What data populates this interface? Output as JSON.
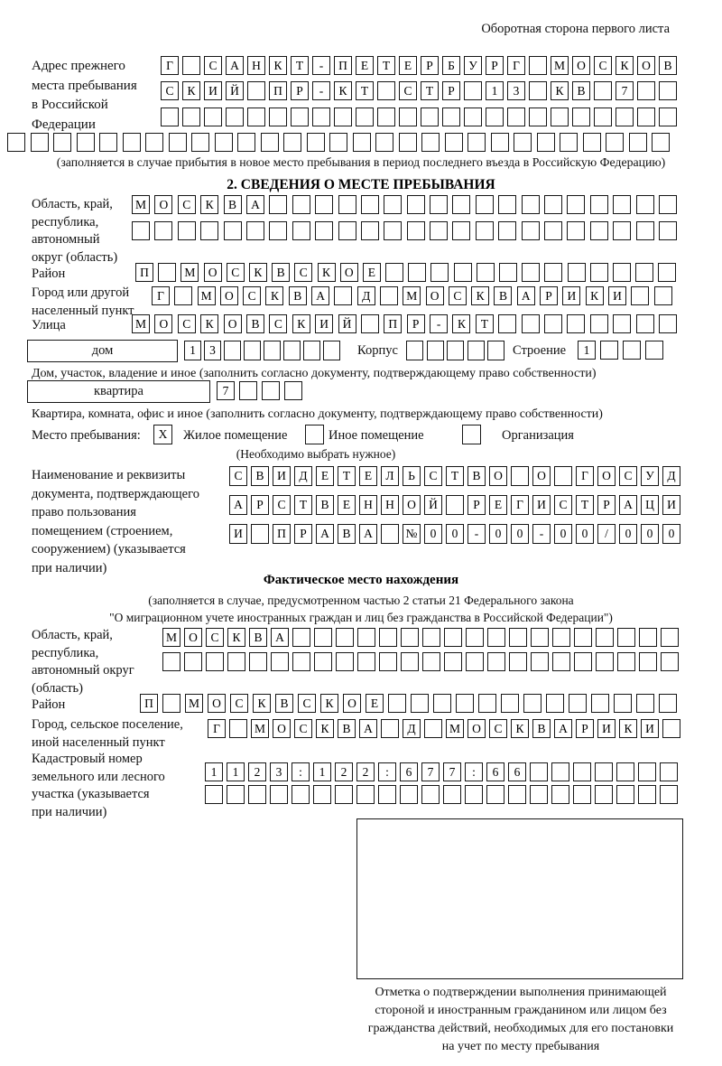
{
  "page": {
    "header_note": "Оборотная сторона первого листа"
  },
  "prev_address": {
    "label_lines": [
      "Адрес прежнего",
      "места пребывания",
      "в Российской",
      "Федерации"
    ],
    "row1": [
      "Г",
      "",
      "С",
      "А",
      "Н",
      "К",
      "Т",
      "-",
      "П",
      "Е",
      "Т",
      "Е",
      "Р",
      "Б",
      "У",
      "Р",
      "Г",
      "",
      "М",
      "О",
      "С",
      "К",
      "О",
      "В"
    ],
    "row2": [
      "С",
      "К",
      "И",
      "Й",
      "",
      "П",
      "Р",
      "-",
      "К",
      "Т",
      "",
      "С",
      "Т",
      "Р",
      "",
      "1",
      "3",
      "",
      "К",
      "В",
      "",
      "7",
      "",
      ""
    ],
    "row3": [
      "",
      "",
      "",
      "",
      "",
      "",
      "",
      "",
      "",
      "",
      "",
      "",
      "",
      "",
      "",
      "",
      "",
      "",
      "",
      "",
      "",
      "",
      "",
      ""
    ],
    "row4": [
      "",
      "",
      "",
      "",
      "",
      "",
      "",
      "",
      "",
      "",
      "",
      "",
      "",
      "",
      "",
      "",
      "",
      "",
      "",
      "",
      "",
      "",
      "",
      "",
      "",
      "",
      "",
      "",
      ""
    ],
    "note": "(заполняется в случае прибытия в новое место пребывания в период последнего въезда в Российскую Федерацию)"
  },
  "section2": {
    "title": "2. СВЕДЕНИЯ О МЕСТЕ ПРЕБЫВАНИЯ",
    "region": {
      "label_lines": [
        "Область, край,",
        "республика,",
        "автономный",
        "округ (область)"
      ],
      "row1": [
        "М",
        "О",
        "С",
        "К",
        "В",
        "А",
        "",
        "",
        "",
        "",
        "",
        "",
        "",
        "",
        "",
        "",
        "",
        "",
        "",
        "",
        "",
        "",
        "",
        ""
      ],
      "row2": [
        "",
        "",
        "",
        "",
        "",
        "",
        "",
        "",
        "",
        "",
        "",
        "",
        "",
        "",
        "",
        "",
        "",
        "",
        "",
        "",
        "",
        "",
        "",
        ""
      ]
    },
    "district": {
      "label": "Район",
      "row": [
        "П",
        "",
        "М",
        "О",
        "С",
        "К",
        "В",
        "С",
        "К",
        "О",
        "Е",
        "",
        "",
        "",
        "",
        "",
        "",
        "",
        "",
        "",
        "",
        "",
        "",
        ""
      ]
    },
    "city": {
      "label_lines": [
        "Город или другой",
        "населенный пункт"
      ],
      "row": [
        "Г",
        "",
        "М",
        "О",
        "С",
        "К",
        "В",
        "А",
        "",
        "Д",
        "",
        "М",
        "О",
        "С",
        "К",
        "В",
        "А",
        "Р",
        "И",
        "К",
        "И",
        "",
        ""
      ]
    },
    "street": {
      "label": "Улица",
      "row": [
        "М",
        "О",
        "С",
        "К",
        "О",
        "В",
        "С",
        "К",
        "И",
        "Й",
        "",
        "П",
        "Р",
        "-",
        "К",
        "Т",
        "",
        "",
        "",
        "",
        "",
        "",
        "",
        ""
      ]
    },
    "house": {
      "box_label": "дом",
      "cells": [
        "1",
        "3",
        "",
        "",
        "",
        "",
        "",
        ""
      ],
      "korpus_label": "Корпус",
      "korpus_cells": [
        "",
        "",
        "",
        "",
        ""
      ],
      "stroenie_label": "Строение",
      "stroenie_cells": [
        "1",
        "",
        "",
        ""
      ],
      "note": "Дом, участок, владение и иное (заполнить согласно документу, подтверждающему право собственности)"
    },
    "apartment": {
      "box_label": "квартира",
      "cells": [
        "7",
        "",
        "",
        ""
      ],
      "note": "Квартира, комната, офис и иное (заполнить согласно документу, подтверждающему право собственности)"
    },
    "stay_type": {
      "label": "Место пребывания:",
      "options": [
        {
          "label": "Жилое помещение",
          "mark": "X"
        },
        {
          "label": "Иное помещение",
          "mark": ""
        },
        {
          "label": "Организация",
          "mark": ""
        }
      ],
      "note": "(Необходимо выбрать нужное)"
    },
    "document": {
      "label_lines": [
        "Наименование и реквизиты",
        "документа, подтверждающего",
        "право пользования",
        "помещением (строением,",
        "сооружением) (указывается",
        "при наличии)"
      ],
      "row1": [
        "С",
        "В",
        "И",
        "Д",
        "Е",
        "Т",
        "Е",
        "Л",
        "Ь",
        "С",
        "Т",
        "В",
        "О",
        "",
        "О",
        "",
        "Г",
        "О",
        "С",
        "У",
        "Д"
      ],
      "row2": [
        "А",
        "Р",
        "С",
        "Т",
        "В",
        "Е",
        "Н",
        "Н",
        "О",
        "Й",
        "",
        "Р",
        "Е",
        "Г",
        "И",
        "С",
        "Т",
        "Р",
        "А",
        "Ц",
        "И"
      ],
      "row3": [
        "И",
        "",
        "П",
        "Р",
        "А",
        "В",
        "А",
        "",
        "№",
        "0",
        "0",
        "-",
        "0",
        "0",
        "-",
        "0",
        "0",
        "/",
        "0",
        "0",
        "0"
      ]
    }
  },
  "actual_location": {
    "title": "Фактическое место нахождения",
    "note_line1": "(заполняется в случае, предусмотренном частью 2 статьи 21 Федерального закона",
    "note_line2": "\"О миграционном учете иностранных граждан и лиц без гражданства в Российской Федерации\")",
    "region": {
      "label_lines": [
        "Область, край,",
        "республика,",
        "автономный округ",
        "(область)"
      ],
      "row1": [
        "М",
        "О",
        "С",
        "К",
        "В",
        "А",
        "",
        "",
        "",
        "",
        "",
        "",
        "",
        "",
        "",
        "",
        "",
        "",
        "",
        "",
        "",
        "",
        "",
        ""
      ],
      "row2": [
        "",
        "",
        "",
        "",
        "",
        "",
        "",
        "",
        "",
        "",
        "",
        "",
        "",
        "",
        "",
        "",
        "",
        "",
        "",
        "",
        "",
        "",
        "",
        ""
      ]
    },
    "district": {
      "label": "Район",
      "row": [
        "П",
        "",
        "М",
        "О",
        "С",
        "К",
        "В",
        "С",
        "К",
        "О",
        "Е",
        "",
        "",
        "",
        "",
        "",
        "",
        "",
        "",
        "",
        "",
        "",
        "",
        ""
      ]
    },
    "city": {
      "label_lines": [
        "Город, сельское поселение,",
        "иной населенный пункт"
      ],
      "row": [
        "Г",
        "",
        "М",
        "О",
        "С",
        "К",
        "В",
        "А",
        "",
        "Д",
        "",
        "М",
        "О",
        "С",
        "К",
        "В",
        "А",
        "Р",
        "И",
        "К",
        "И",
        ""
      ]
    },
    "cadastre": {
      "label_lines": [
        "Кадастровый номер",
        "земельного или лесного",
        "участка (указывается",
        "при наличии)"
      ],
      "row1": [
        "1",
        "1",
        "2",
        "3",
        ":",
        "1",
        "2",
        "2",
        ":",
        "6",
        "7",
        "7",
        ":",
        "6",
        "6",
        "",
        "",
        "",
        "",
        "",
        "",
        ""
      ],
      "row2": [
        "",
        "",
        "",
        "",
        "",
        "",
        "",
        "",
        "",
        "",
        "",
        "",
        "",
        "",
        "",
        "",
        "",
        "",
        "",
        "",
        "",
        ""
      ]
    },
    "stamp_caption_lines": [
      "Отметка о подтверждении выполнения принимающей",
      "стороной и иностранным гражданином или лицом без",
      "гражданства действий, необходимых для его постановки",
      "на учет по месту пребывания"
    ]
  }
}
